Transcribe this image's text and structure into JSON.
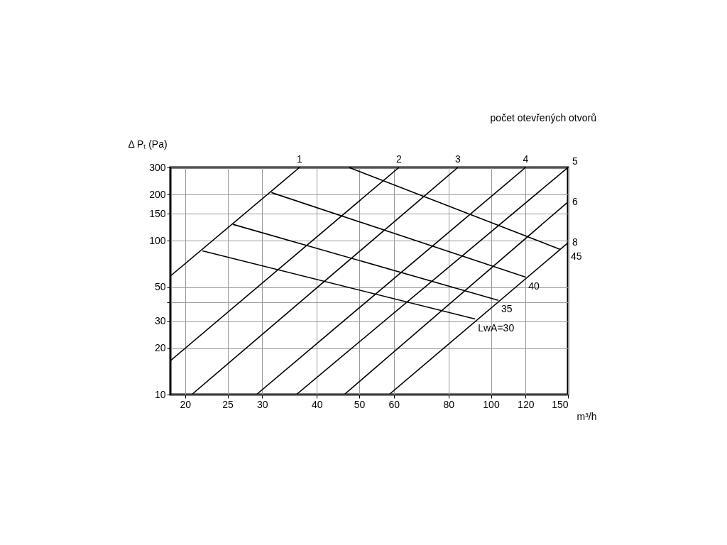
{
  "chart_data": {
    "type": "line",
    "ylabel": "Δ Pₜ (Pa)",
    "xlabel": "m³/h",
    "annotations": [
      "počet otevřených otvorů"
    ],
    "log": "xy",
    "grid": true,
    "legend": false,
    "xlim": [
      18.5,
      150
    ],
    "xticks": [
      20,
      25,
      30,
      40,
      50,
      60,
      80,
      100,
      120,
      150
    ],
    "ylim": [
      10,
      300
    ],
    "yticks": [
      10,
      20,
      30,
      {
        "value": 40,
        "label": null
      },
      50,
      100,
      150,
      200,
      300
    ],
    "series": [
      {
        "name": "1",
        "color": "#000000",
        "x": [
          18.5,
          36.5
        ],
        "values": [
          59,
          300
        ]
      },
      {
        "name": "2",
        "color": "#000000",
        "x": [
          18.5,
          61.6
        ],
        "values": [
          16.6,
          300
        ]
      },
      {
        "name": "3",
        "color": "#000000",
        "x": [
          20.7,
          84
        ],
        "values": [
          10,
          300
        ]
      },
      {
        "name": "4",
        "color": "#000000",
        "x": [
          29.1,
          120
        ],
        "values": [
          10,
          300
        ]
      },
      {
        "name": "5",
        "color": "#000000",
        "x": [
          35.9,
          150
        ],
        "values": [
          10,
          300
        ]
      },
      {
        "name": "6",
        "color": "#000000",
        "x": [
          46.2,
          150
        ],
        "values": [
          10,
          179
        ]
      },
      {
        "name": "8",
        "color": "#000000",
        "x": [
          58.5,
          150
        ],
        "values": [
          10,
          97
        ]
      },
      {
        "name": "45",
        "color": "#000000",
        "x": [
          47.4,
          144
        ],
        "values": [
          300,
          88
        ]
      },
      {
        "name": "40",
        "color": "#000000",
        "x": [
          31.5,
          120
        ],
        "values": [
          206,
          58
        ]
      },
      {
        "name": "35",
        "color": "#000000",
        "x": [
          25.7,
          104
        ],
        "values": [
          128,
          41
        ]
      },
      {
        "name": "LwA=30",
        "color": "#000000",
        "x": [
          21.9,
          92
        ],
        "values": [
          86,
          31
        ]
      }
    ]
  }
}
